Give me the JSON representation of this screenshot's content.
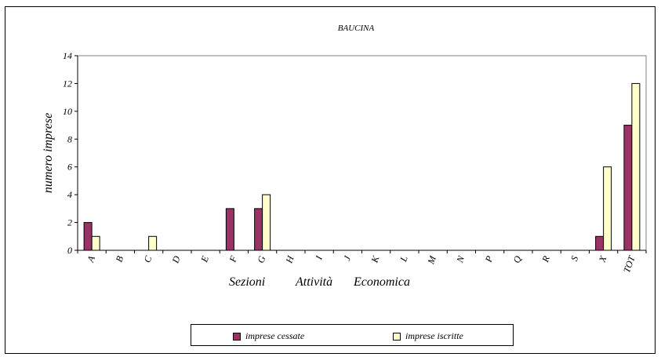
{
  "chart_data": {
    "type": "bar",
    "title": "BAUCINA",
    "xlabel_parts": [
      "Sezioni",
      "Attività",
      "Economica"
    ],
    "ylabel": "numero imprese",
    "ylim": [
      0,
      14
    ],
    "yticks": [
      0,
      2,
      4,
      6,
      8,
      10,
      12,
      14
    ],
    "grid": false,
    "legend_position": "bottom",
    "categories": [
      "A",
      "B",
      "C",
      "D",
      "E",
      "F",
      "G",
      "H",
      "I",
      "J",
      "K",
      "L",
      "M",
      "N",
      "P",
      "Q",
      "R",
      "S",
      "X",
      "TOT"
    ],
    "series": [
      {
        "name": "imprese cessate",
        "color": "#993366",
        "values": [
          2,
          0,
          0,
          0,
          0,
          3,
          3,
          0,
          0,
          0,
          0,
          0,
          0,
          0,
          0,
          0,
          0,
          0,
          1,
          9
        ]
      },
      {
        "name": "imprese iscritte",
        "color": "#ffffcc",
        "values": [
          1,
          0,
          1,
          0,
          0,
          0,
          4,
          0,
          0,
          0,
          0,
          0,
          0,
          0,
          0,
          0,
          0,
          0,
          6,
          12
        ]
      }
    ]
  }
}
